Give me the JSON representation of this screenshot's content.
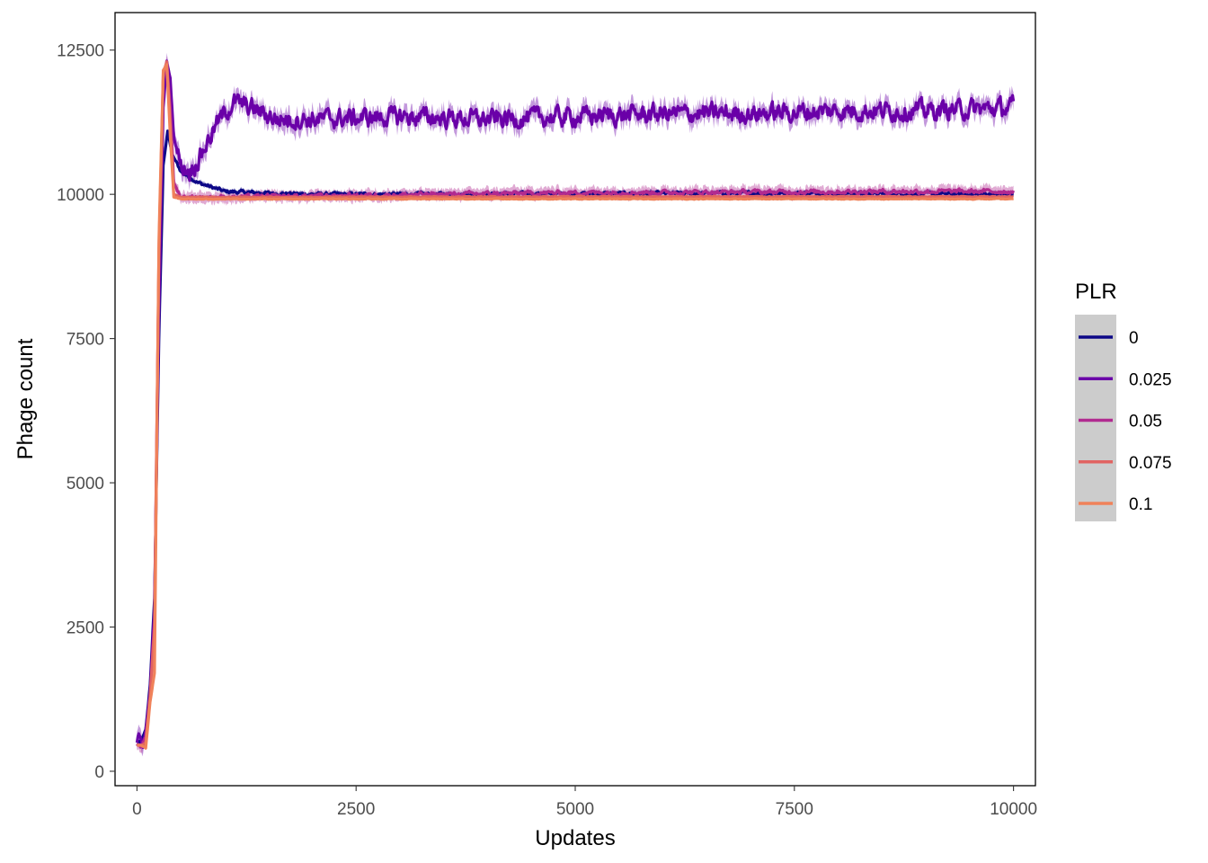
{
  "chart_data": {
    "type": "line",
    "xlabel": "Updates",
    "ylabel": "Phage count",
    "xlim": [
      -250,
      10250
    ],
    "ylim": [
      -250,
      13150
    ],
    "x_ticks": [
      0,
      2500,
      5000,
      7500,
      10000
    ],
    "y_ticks": [
      0,
      2500,
      5000,
      7500,
      10000,
      12500
    ],
    "x_tick_labels": [
      "0",
      "2500",
      "5000",
      "7500",
      "10000"
    ],
    "y_tick_labels": [
      "0",
      "2500",
      "5000",
      "7500",
      "10000",
      "12500"
    ],
    "grid": false,
    "confidence_ribbons": true,
    "legend": {
      "title": "PLR",
      "position": "right",
      "entries": [
        "0",
        "0.025",
        "0.05",
        "0.075",
        "0.1"
      ]
    },
    "series": [
      {
        "name": "0",
        "color": "#0d0887",
        "ribbon_halfwidth": 40,
        "noise": 25,
        "points": [
          [
            0,
            450
          ],
          [
            50,
            520
          ],
          [
            100,
            700
          ],
          [
            150,
            1500
          ],
          [
            200,
            3000
          ],
          [
            250,
            7500
          ],
          [
            300,
            10500
          ],
          [
            350,
            11100
          ],
          [
            400,
            10700
          ],
          [
            500,
            10400
          ],
          [
            700,
            10200
          ],
          [
            1000,
            10050
          ],
          [
            1500,
            10020
          ],
          [
            2000,
            10000
          ],
          [
            3000,
            10000
          ],
          [
            5000,
            10010
          ],
          [
            7500,
            10020
          ],
          [
            10000,
            10000
          ]
        ]
      },
      {
        "name": "0.025",
        "color": "#6a00a8",
        "ribbon_halfwidth": 150,
        "noise": 130,
        "points": [
          [
            0,
            450
          ],
          [
            50,
            500
          ],
          [
            100,
            650
          ],
          [
            150,
            1400
          ],
          [
            200,
            2800
          ],
          [
            250,
            8000
          ],
          [
            300,
            11500
          ],
          [
            340,
            12300
          ],
          [
            380,
            12000
          ],
          [
            420,
            11000
          ],
          [
            500,
            10500
          ],
          [
            600,
            10400
          ],
          [
            700,
            10600
          ],
          [
            900,
            11200
          ],
          [
            1100,
            11600
          ],
          [
            1300,
            11500
          ],
          [
            1600,
            11300
          ],
          [
            2000,
            11300
          ],
          [
            3000,
            11350
          ],
          [
            4000,
            11300
          ],
          [
            5000,
            11350
          ],
          [
            6000,
            11400
          ],
          [
            7000,
            11400
          ],
          [
            8000,
            11450
          ],
          [
            9000,
            11450
          ],
          [
            10000,
            11500
          ]
        ]
      },
      {
        "name": "0.05",
        "color": "#b12a90",
        "ribbon_halfwidth": 90,
        "noise": 30,
        "points": [
          [
            0,
            450
          ],
          [
            50,
            450
          ],
          [
            100,
            600
          ],
          [
            150,
            1300
          ],
          [
            200,
            2600
          ],
          [
            250,
            8800
          ],
          [
            300,
            12000
          ],
          [
            340,
            12300
          ],
          [
            380,
            11500
          ],
          [
            420,
            10200
          ],
          [
            500,
            9950
          ],
          [
            1000,
            9950
          ],
          [
            2000,
            9970
          ],
          [
            3000,
            9990
          ],
          [
            4000,
            10010
          ],
          [
            5000,
            10030
          ],
          [
            7000,
            10040
          ],
          [
            8500,
            10050
          ],
          [
            10000,
            10050
          ]
        ]
      },
      {
        "name": "0.075",
        "color": "#e16462",
        "ribbon_halfwidth": 10,
        "noise": 6,
        "points": [
          [
            0,
            450
          ],
          [
            50,
            450
          ],
          [
            100,
            500
          ],
          [
            150,
            1300
          ],
          [
            200,
            2500
          ],
          [
            250,
            9000
          ],
          [
            300,
            12100
          ],
          [
            340,
            12300
          ],
          [
            380,
            11200
          ],
          [
            420,
            10000
          ],
          [
            500,
            9950
          ],
          [
            1000,
            9950
          ],
          [
            5000,
            9960
          ],
          [
            10000,
            9960
          ]
        ]
      },
      {
        "name": "0.1",
        "color": "#fca636",
        "line_color": "#f0825a",
        "ribbon_halfwidth": 10,
        "noise": 5,
        "points": [
          [
            0,
            450
          ],
          [
            50,
            450
          ],
          [
            100,
            400
          ],
          [
            150,
            1200
          ],
          [
            200,
            1700
          ],
          [
            250,
            9200
          ],
          [
            300,
            12150
          ],
          [
            340,
            12250
          ],
          [
            380,
            11000
          ],
          [
            420,
            9950
          ],
          [
            500,
            9920
          ],
          [
            1000,
            9920
          ],
          [
            5000,
            9920
          ],
          [
            10000,
            9920
          ]
        ]
      }
    ]
  }
}
